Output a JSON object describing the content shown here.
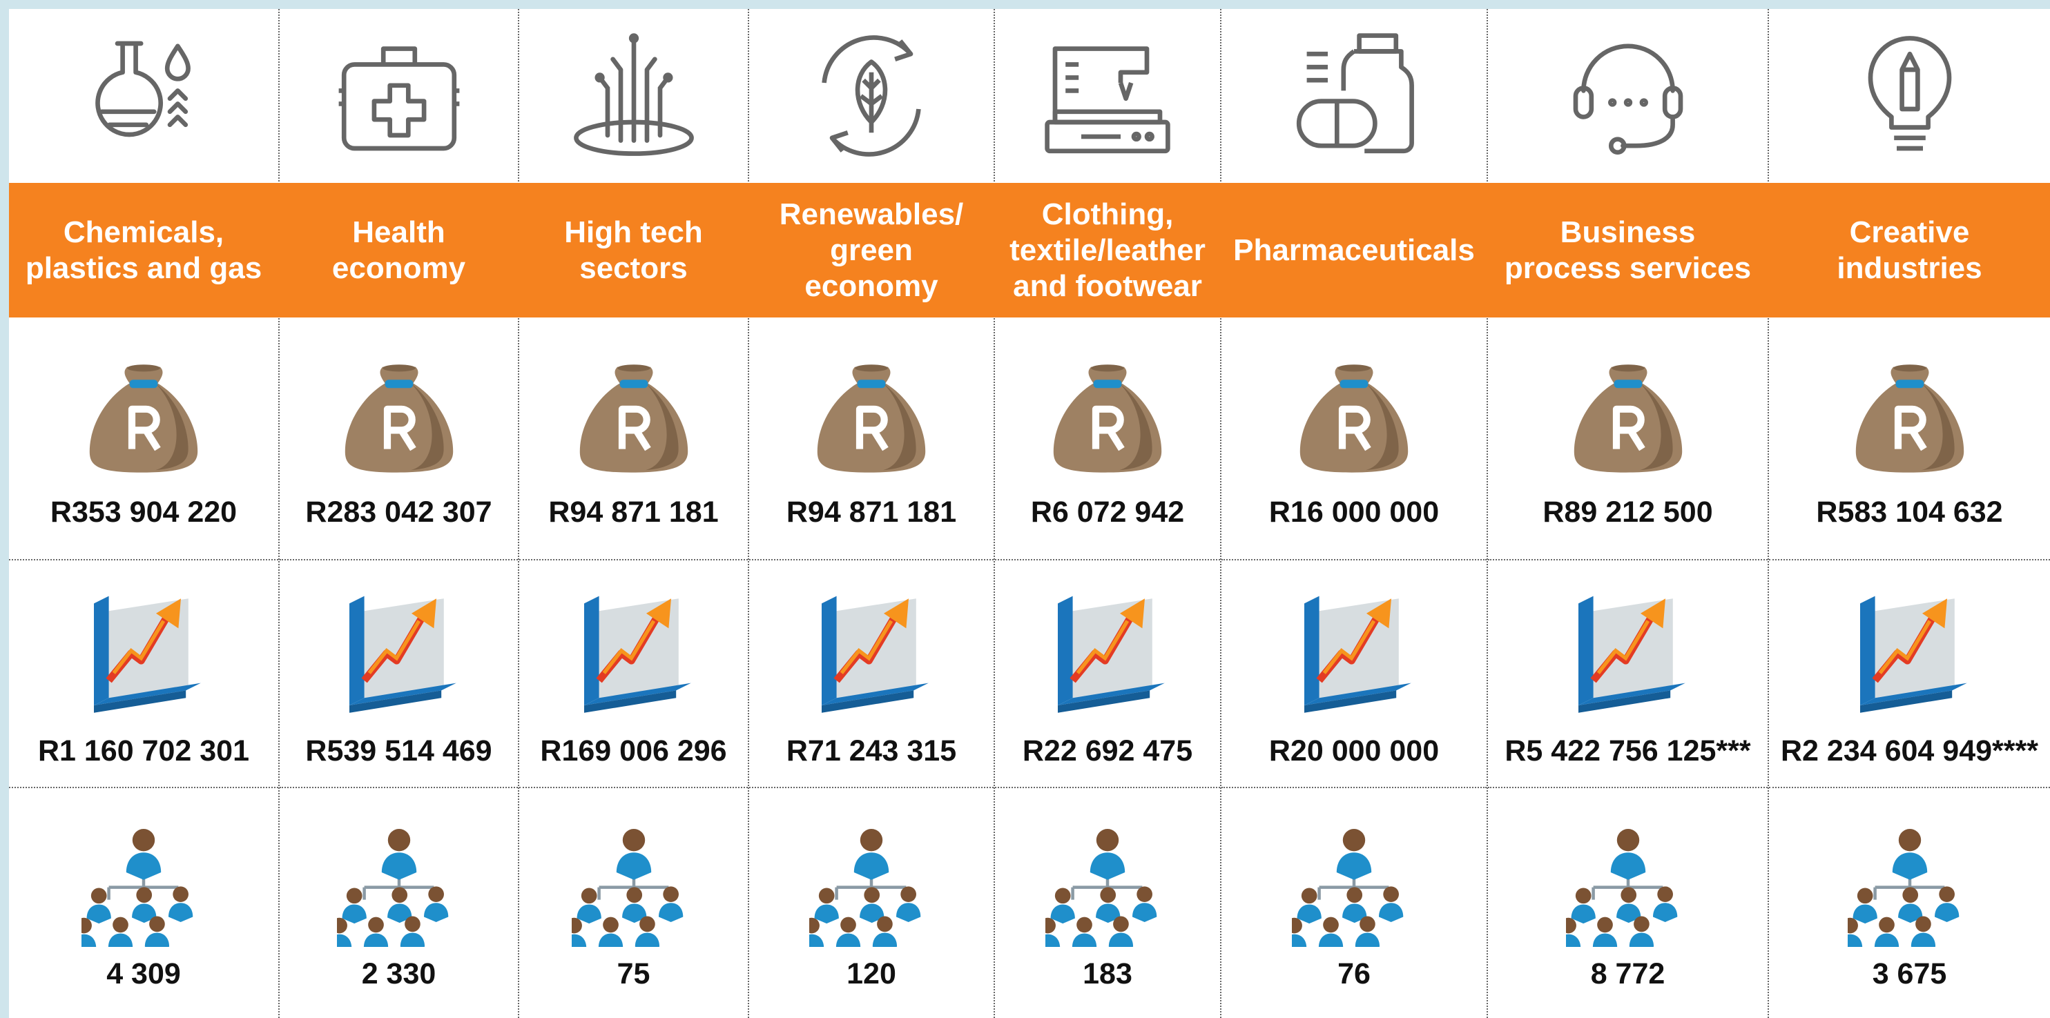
{
  "columns": [
    {
      "label": "Chemicals, plastics and gas",
      "investment": "R353 904 220",
      "growth": "R1 160 702 301",
      "jobs": "4 309"
    },
    {
      "label": "Health economy",
      "investment": "R283 042 307",
      "growth": "R539 514 469",
      "jobs": "2 330"
    },
    {
      "label": "High tech sectors",
      "investment": "R94 871 181",
      "growth": "R169 006 296",
      "jobs": "75"
    },
    {
      "label": "Renewables/ green economy",
      "investment": "R94 871 181",
      "growth": "R71 243 315",
      "jobs": "120"
    },
    {
      "label": "Clothing, textile/leather and footwear",
      "investment": "R6 072 942",
      "growth": "R22 692 475",
      "jobs": "183"
    },
    {
      "label": "Pharmaceuticals",
      "investment": "R16 000 000",
      "growth": "R20 000 000",
      "jobs": "76"
    },
    {
      "label": "Business process services",
      "investment": "R89 212 500",
      "growth": "R5 422 756 125***",
      "jobs": "8 772"
    },
    {
      "label": "Creative industries",
      "investment": "R583 104 632",
      "growth": "R2 234 604 949****",
      "jobs": "3 675"
    }
  ]
}
